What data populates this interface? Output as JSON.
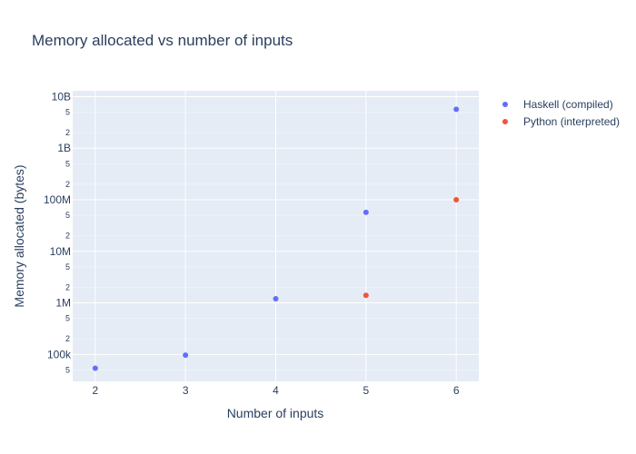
{
  "chart_data": {
    "type": "scatter",
    "title": "Memory allocated vs number of inputs",
    "xlabel": "Number of inputs",
    "ylabel": "Memory allocated (bytes)",
    "x_ticks": [
      "2",
      "3",
      "4",
      "5",
      "6"
    ],
    "x_range": [
      1.75,
      6.25
    ],
    "y_scale": "log",
    "y_range": [
      30000,
      13000000000
    ],
    "y_major_ticks": [
      {
        "value": 100000,
        "label": "100k"
      },
      {
        "value": 1000000,
        "label": "1M"
      },
      {
        "value": 10000000,
        "label": "10M"
      },
      {
        "value": 100000000,
        "label": "100M"
      },
      {
        "value": 1000000000,
        "label": "1B"
      },
      {
        "value": 10000000000,
        "label": "10B"
      }
    ],
    "y_minor_ticks": [
      {
        "value": 50000,
        "label": "5"
      },
      {
        "value": 200000,
        "label": "2"
      },
      {
        "value": 500000,
        "label": "5"
      },
      {
        "value": 2000000,
        "label": "2"
      },
      {
        "value": 5000000,
        "label": "5"
      },
      {
        "value": 20000000,
        "label": "2"
      },
      {
        "value": 50000000,
        "label": "5"
      },
      {
        "value": 200000000,
        "label": "2"
      },
      {
        "value": 500000000,
        "label": "5"
      },
      {
        "value": 2000000000,
        "label": "2"
      },
      {
        "value": 5000000000,
        "label": "5"
      }
    ],
    "series": [
      {
        "name": "Haskell (compiled)",
        "color": "#636efa",
        "points": [
          {
            "x": 2,
            "y": 54000
          },
          {
            "x": 3,
            "y": 97000
          },
          {
            "x": 4,
            "y": 1200000
          },
          {
            "x": 5,
            "y": 57000000
          },
          {
            "x": 6,
            "y": 5700000000
          }
        ]
      },
      {
        "name": "Python (interpreted)",
        "color": "#ef553b",
        "points": [
          {
            "x": 5,
            "y": 1400000
          },
          {
            "x": 6,
            "y": 100000000
          }
        ]
      }
    ],
    "legend_position": "top-right",
    "grid": true
  }
}
